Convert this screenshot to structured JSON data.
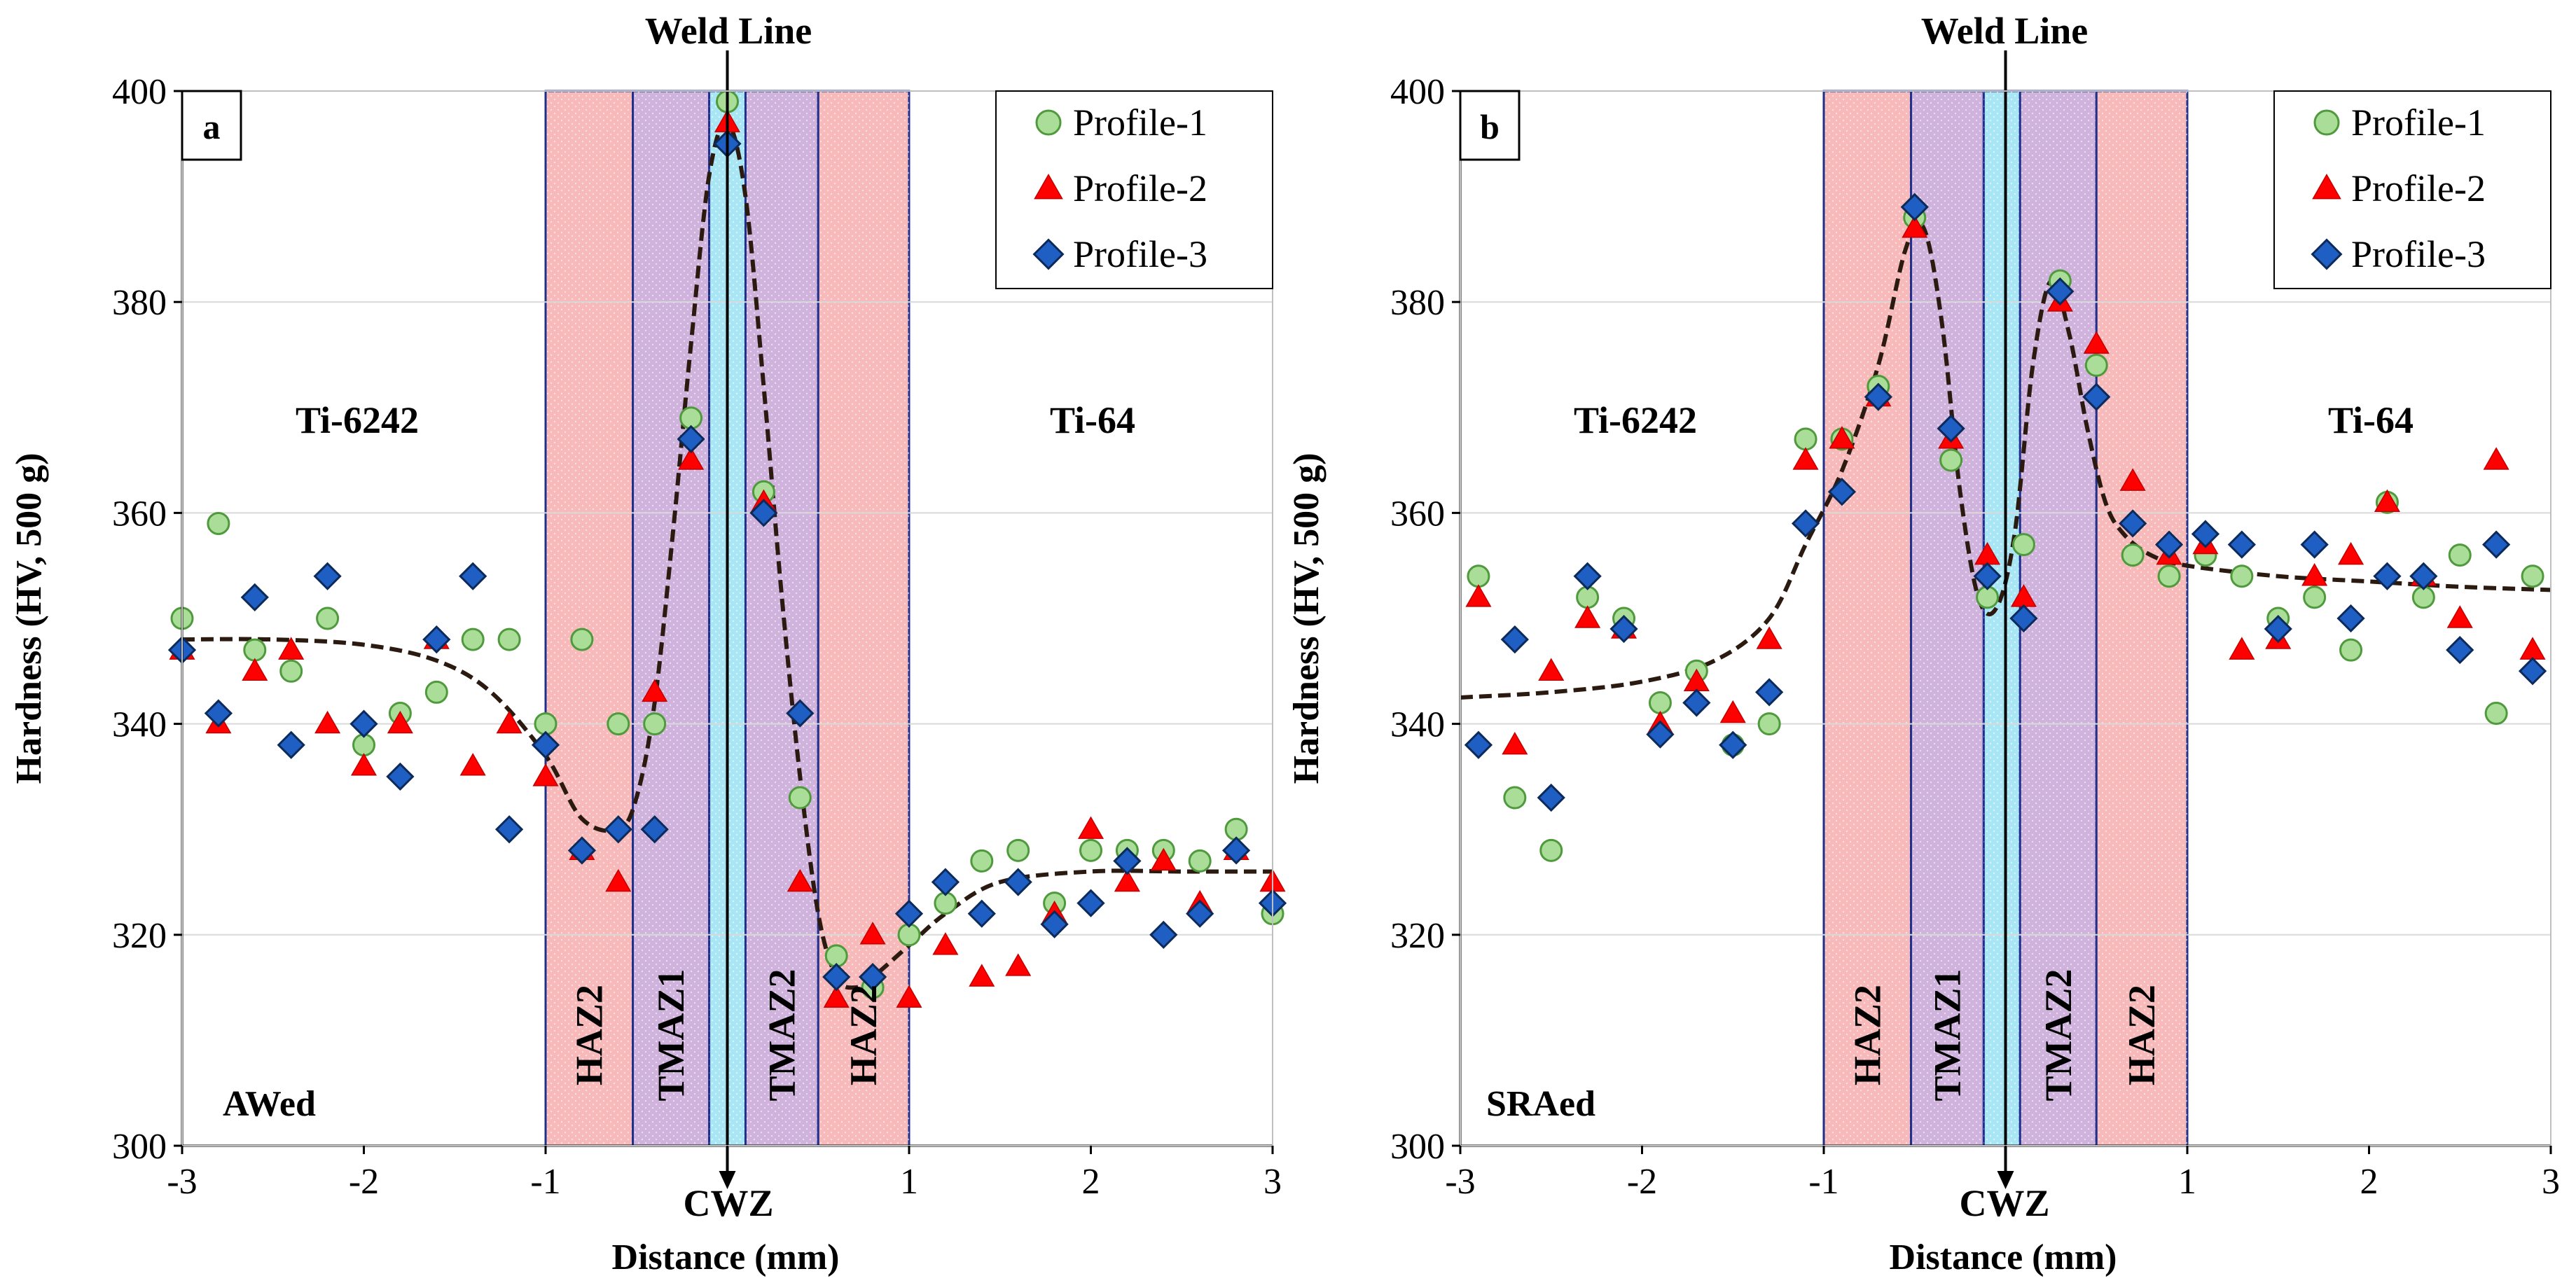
{
  "figure": {
    "y_axis_label": "Hardness (HV, 500 g)",
    "x_axis_label": "Distance (mm)",
    "weld_line_label": "Weld Line",
    "cwz_label": "CWZ"
  },
  "colors": {
    "haz": "#f7b9b9",
    "tmaz": "#cfb3dd",
    "cwz": "#a9e6f5",
    "zone_border": "#1f2f8c",
    "grid": "#d9d9d9",
    "profile1": "#a9dd98",
    "profile1_edge": "#4f9a3c",
    "profile2": "#ff0000",
    "profile3": "#1f5fc4",
    "profile3_edge": "#0c2a5a",
    "fit": "#2a1a10"
  },
  "chart_data": [
    {
      "type": "scatter",
      "panel_label": "a",
      "condition_label": "AWed",
      "left_material": "Ti-6242",
      "right_material": "Ti-64",
      "xlim": [
        -3,
        3
      ],
      "ylim": [
        300,
        400
      ],
      "x_ticks": [
        -3,
        -2,
        -1,
        0,
        1,
        2,
        3
      ],
      "x_tick_labels": [
        "-3",
        "-2",
        "-1",
        "",
        "1",
        "2",
        "3"
      ],
      "y_ticks": [
        300,
        320,
        340,
        360,
        380,
        400
      ],
      "grid": true,
      "legend": "top-right",
      "zones": [
        {
          "label": "HAZ2",
          "kind": "haz",
          "x0": -1.0,
          "x1": -0.52
        },
        {
          "label": "TMAZ1",
          "kind": "tmaz",
          "x0": -0.52,
          "x1": -0.1
        },
        {
          "label": "",
          "kind": "cwz",
          "x0": -0.1,
          "x1": 0.1
        },
        {
          "label": "TMAZ2",
          "kind": "tmaz",
          "x0": 0.1,
          "x1": 0.5
        },
        {
          "label": "HAZ2",
          "kind": "haz",
          "x0": 0.5,
          "x1": 1.0
        }
      ],
      "weld_line_x": 0,
      "series": [
        {
          "name": "Profile-1",
          "marker": "circle",
          "x": [
            -3.0,
            -2.8,
            -2.6,
            -2.4,
            -2.2,
            -2.0,
            -1.8,
            -1.6,
            -1.4,
            -1.2,
            -1.0,
            -0.8,
            -0.6,
            -0.4,
            -0.2,
            0.0,
            0.2,
            0.4,
            0.6,
            0.8,
            1.0,
            1.2,
            1.4,
            1.6,
            1.8,
            2.0,
            2.2,
            2.4,
            2.6,
            2.8,
            3.0
          ],
          "y": [
            350,
            359,
            347,
            345,
            350,
            338,
            341,
            343,
            348,
            348,
            340,
            348,
            340,
            340,
            369,
            399,
            362,
            333,
            318,
            315,
            320,
            323,
            327,
            328,
            323,
            328,
            328,
            328,
            327,
            330,
            322
          ]
        },
        {
          "name": "Profile-2",
          "marker": "triangle",
          "x": [
            -3.0,
            -2.8,
            -2.6,
            -2.4,
            -2.2,
            -2.0,
            -1.8,
            -1.6,
            -1.4,
            -1.2,
            -1.0,
            -0.8,
            -0.6,
            -0.4,
            -0.2,
            0.0,
            0.2,
            0.4,
            0.6,
            0.8,
            1.0,
            1.2,
            1.4,
            1.6,
            1.8,
            2.0,
            2.2,
            2.4,
            2.6,
            2.8,
            3.0
          ],
          "y": [
            347,
            340,
            345,
            347,
            340,
            336,
            340,
            348,
            336,
            340,
            335,
            328,
            325,
            343,
            365,
            397,
            361,
            325,
            314,
            320,
            314,
            319,
            316,
            317,
            322,
            330,
            325,
            327,
            323,
            328,
            325
          ]
        },
        {
          "name": "Profile-3",
          "marker": "diamond",
          "x": [
            -3.0,
            -2.8,
            -2.6,
            -2.4,
            -2.2,
            -2.0,
            -1.8,
            -1.6,
            -1.4,
            -1.2,
            -1.0,
            -0.8,
            -0.6,
            -0.4,
            -0.2,
            0.0,
            0.2,
            0.4,
            0.6,
            0.8,
            1.0,
            1.2,
            1.4,
            1.6,
            1.8,
            2.0,
            2.2,
            2.4,
            2.6,
            2.8,
            3.0
          ],
          "y": [
            347,
            341,
            352,
            338,
            354,
            340,
            335,
            348,
            354,
            330,
            338,
            328,
            330,
            330,
            367,
            395,
            360,
            341,
            316,
            316,
            322,
            325,
            322,
            325,
            321,
            323,
            327,
            320,
            322,
            328,
            323
          ]
        }
      ],
      "fit": {
        "x": [
          -3.0,
          -2.5,
          -2.0,
          -1.6,
          -1.3,
          -1.0,
          -0.8,
          -0.6,
          -0.5,
          -0.4,
          -0.3,
          -0.2,
          -0.1,
          0.0,
          0.1,
          0.2,
          0.3,
          0.4,
          0.5,
          0.6,
          0.7,
          0.8,
          1.0,
          1.2,
          1.5,
          2.0,
          2.5,
          3.0
        ],
        "y": [
          348,
          348,
          347.5,
          346,
          343,
          337,
          331,
          330,
          333,
          342,
          358,
          376,
          392,
          397,
          390,
          372,
          352,
          335,
          322,
          316,
          315,
          316,
          319,
          322,
          325,
          326,
          326,
          326
        ]
      }
    },
    {
      "type": "scatter",
      "panel_label": "b",
      "condition_label": "SRAed",
      "left_material": "Ti-6242",
      "right_material": "Ti-64",
      "xlim": [
        -3,
        3
      ],
      "ylim": [
        300,
        400
      ],
      "x_ticks": [
        -3,
        -2,
        -1,
        0,
        1,
        2,
        3
      ],
      "x_tick_labels": [
        "-3",
        "-2",
        "-1",
        "",
        "1",
        "2",
        "3"
      ],
      "y_ticks": [
        300,
        320,
        340,
        360,
        380,
        400
      ],
      "grid": true,
      "legend": "top-right",
      "zones": [
        {
          "label": "HAZ2",
          "kind": "haz",
          "x0": -1.0,
          "x1": -0.52
        },
        {
          "label": "TMAZ1",
          "kind": "tmaz",
          "x0": -0.52,
          "x1": -0.12
        },
        {
          "label": "",
          "kind": "cwz",
          "x0": -0.12,
          "x1": 0.08
        },
        {
          "label": "TMAZ2",
          "kind": "tmaz",
          "x0": 0.08,
          "x1": 0.5
        },
        {
          "label": "HAZ2",
          "kind": "haz",
          "x0": 0.5,
          "x1": 1.0
        }
      ],
      "weld_line_x": 0,
      "series": [
        {
          "name": "Profile-1",
          "marker": "circle",
          "x": [
            -2.9,
            -2.7,
            -2.5,
            -2.3,
            -2.1,
            -1.9,
            -1.7,
            -1.5,
            -1.3,
            -1.1,
            -0.9,
            -0.7,
            -0.5,
            -0.3,
            -0.1,
            0.1,
            0.3,
            0.5,
            0.7,
            0.9,
            1.1,
            1.3,
            1.5,
            1.7,
            1.9,
            2.1,
            2.3,
            2.5,
            2.7,
            2.9
          ],
          "y": [
            354,
            333,
            328,
            352,
            350,
            342,
            345,
            338,
            340,
            367,
            367,
            372,
            388,
            365,
            352,
            357,
            382,
            374,
            356,
            354,
            356,
            354,
            350,
            352,
            347,
            361,
            352,
            356,
            341,
            354
          ]
        },
        {
          "name": "Profile-2",
          "marker": "triangle",
          "x": [
            -2.9,
            -2.7,
            -2.5,
            -2.3,
            -2.1,
            -1.9,
            -1.7,
            -1.5,
            -1.3,
            -1.1,
            -0.9,
            -0.7,
            -0.5,
            -0.3,
            -0.1,
            0.1,
            0.3,
            0.5,
            0.7,
            0.9,
            1.1,
            1.3,
            1.5,
            1.7,
            1.9,
            2.1,
            2.3,
            2.5,
            2.7,
            2.9
          ],
          "y": [
            352,
            338,
            345,
            350,
            349,
            340,
            344,
            341,
            348,
            365,
            367,
            371,
            387,
            367,
            356,
            352,
            380,
            376,
            363,
            356,
            357,
            347,
            348,
            354,
            356,
            361,
            354,
            350,
            365,
            347
          ]
        },
        {
          "name": "Profile-3",
          "marker": "diamond",
          "x": [
            -2.9,
            -2.7,
            -2.5,
            -2.3,
            -2.1,
            -1.9,
            -1.7,
            -1.5,
            -1.3,
            -1.1,
            -0.9,
            -0.7,
            -0.5,
            -0.3,
            -0.1,
            0.1,
            0.3,
            0.5,
            0.7,
            0.9,
            1.1,
            1.3,
            1.5,
            1.7,
            1.9,
            2.1,
            2.3,
            2.5,
            2.7,
            2.9
          ],
          "y": [
            338,
            348,
            333,
            354,
            349,
            339,
            342,
            338,
            343,
            359,
            362,
            371,
            389,
            368,
            354,
            350,
            381,
            371,
            359,
            357,
            358,
            357,
            349,
            357,
            350,
            354,
            354,
            347,
            357,
            345
          ]
        }
      ],
      "fit": {
        "x": [
          -3.0,
          -2.5,
          -2.0,
          -1.6,
          -1.3,
          -1.1,
          -0.9,
          -0.7,
          -0.55,
          -0.45,
          -0.35,
          -0.25,
          -0.15,
          -0.05,
          0.05,
          0.15,
          0.25,
          0.35,
          0.45,
          0.55,
          0.65,
          0.8,
          1.0,
          1.5,
          2.0,
          2.5,
          3.0
        ],
        "y": [
          342.5,
          343,
          344,
          346,
          350,
          357,
          364,
          374,
          385,
          387,
          378,
          362,
          352,
          351,
          358,
          374,
          382,
          377,
          368,
          361,
          358,
          356,
          355,
          354,
          353.5,
          353,
          352.7
        ]
      }
    }
  ]
}
